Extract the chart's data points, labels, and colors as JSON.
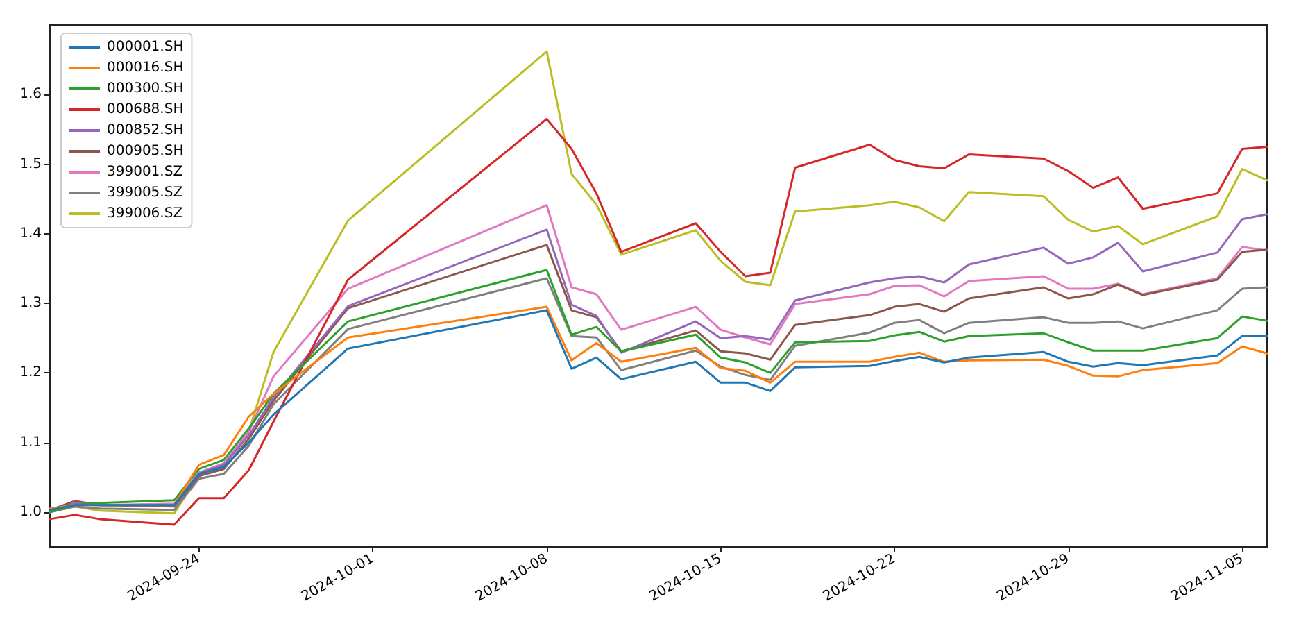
{
  "chart_data": {
    "type": "line",
    "x": [
      "2024-09-18",
      "2024-09-19",
      "2024-09-20",
      "2024-09-23",
      "2024-09-24",
      "2024-09-25",
      "2024-09-26",
      "2024-09-27",
      "2024-09-30",
      "2024-10-08",
      "2024-10-09",
      "2024-10-10",
      "2024-10-11",
      "2024-10-14",
      "2024-10-15",
      "2024-10-16",
      "2024-10-17",
      "2024-10-18",
      "2024-10-21",
      "2024-10-22",
      "2024-10-23",
      "2024-10-24",
      "2024-10-25",
      "2024-10-28",
      "2024-10-29",
      "2024-10-30",
      "2024-10-31",
      "2024-11-01",
      "2024-11-04",
      "2024-11-05",
      "2024-11-06"
    ],
    "series": [
      {
        "name": "000001.SH",
        "color": "#1f77b4",
        "values": [
          1.003,
          1.01,
          1.01,
          1.01,
          1.055,
          1.065,
          1.1,
          1.14,
          1.235,
          1.29,
          1.206,
          1.222,
          1.191,
          1.216,
          1.186,
          1.186,
          1.174,
          1.208,
          1.21,
          1.217,
          1.223,
          1.215,
          1.222,
          1.23,
          1.216,
          1.209,
          1.214,
          1.211,
          1.225,
          1.253,
          1.253
        ]
      },
      {
        "name": "000016.SH",
        "color": "#ff7f0e",
        "values": [
          1.005,
          1.01,
          1.01,
          1.01,
          1.068,
          1.082,
          1.137,
          1.17,
          1.251,
          1.295,
          1.218,
          1.243,
          1.216,
          1.236,
          1.207,
          1.203,
          1.186,
          1.216,
          1.216,
          1.223,
          1.229,
          1.216,
          1.218,
          1.219,
          1.21,
          1.196,
          1.195,
          1.204,
          1.214,
          1.238,
          1.228
        ]
      },
      {
        "name": "000300.SH",
        "color": "#2ca02c",
        "values": [
          1.0,
          1.01,
          1.013,
          1.017,
          1.062,
          1.075,
          1.12,
          1.17,
          1.274,
          1.348,
          1.255,
          1.266,
          1.231,
          1.255,
          1.222,
          1.215,
          1.2,
          1.244,
          1.246,
          1.254,
          1.259,
          1.245,
          1.253,
          1.257,
          1.244,
          1.232,
          1.232,
          1.232,
          1.25,
          1.281,
          1.275
        ]
      },
      {
        "name": "000688.SH",
        "color": "#d62728",
        "values": [
          0.99,
          0.996,
          0.99,
          0.982,
          1.02,
          1.02,
          1.06,
          1.13,
          1.334,
          1.565,
          1.522,
          1.458,
          1.374,
          1.415,
          1.374,
          1.339,
          1.344,
          1.495,
          1.528,
          1.506,
          1.497,
          1.494,
          1.514,
          1.508,
          1.49,
          1.466,
          1.481,
          1.436,
          1.458,
          1.522,
          1.525
        ]
      },
      {
        "name": "000852.SH",
        "color": "#9467bd",
        "values": [
          1.0,
          1.013,
          1.01,
          1.01,
          1.055,
          1.068,
          1.11,
          1.165,
          1.296,
          1.406,
          1.298,
          1.282,
          1.229,
          1.274,
          1.25,
          1.253,
          1.248,
          1.304,
          1.33,
          1.336,
          1.339,
          1.33,
          1.356,
          1.38,
          1.357,
          1.366,
          1.387,
          1.346,
          1.373,
          1.421,
          1.428
        ]
      },
      {
        "name": "000905.SH",
        "color": "#8c564b",
        "values": [
          1.003,
          1.016,
          1.01,
          1.008,
          1.052,
          1.062,
          1.105,
          1.16,
          1.293,
          1.384,
          1.29,
          1.28,
          1.231,
          1.261,
          1.231,
          1.228,
          1.219,
          1.269,
          1.283,
          1.295,
          1.299,
          1.288,
          1.307,
          1.323,
          1.307,
          1.313,
          1.327,
          1.312,
          1.334,
          1.374,
          1.377
        ]
      },
      {
        "name": "399001.SZ",
        "color": "#e377c2",
        "values": [
          1.0,
          1.012,
          1.01,
          1.012,
          1.057,
          1.07,
          1.115,
          1.195,
          1.321,
          1.441,
          1.323,
          1.313,
          1.262,
          1.295,
          1.262,
          1.251,
          1.241,
          1.299,
          1.313,
          1.325,
          1.326,
          1.31,
          1.332,
          1.339,
          1.321,
          1.321,
          1.328,
          1.313,
          1.336,
          1.381,
          1.376
        ]
      },
      {
        "name": "399005.SZ",
        "color": "#7f7f7f",
        "values": [
          1.0,
          1.008,
          1.005,
          1.003,
          1.048,
          1.055,
          1.095,
          1.155,
          1.263,
          1.336,
          1.253,
          1.251,
          1.204,
          1.232,
          1.209,
          1.197,
          1.19,
          1.239,
          1.258,
          1.272,
          1.276,
          1.257,
          1.272,
          1.28,
          1.272,
          1.272,
          1.274,
          1.264,
          1.29,
          1.321,
          1.323
        ]
      },
      {
        "name": "399006.SZ",
        "color": "#bcbd22",
        "values": [
          1.0,
          1.008,
          1.002,
          0.998,
          1.055,
          1.065,
          1.115,
          1.23,
          1.419,
          1.662,
          1.486,
          1.442,
          1.37,
          1.405,
          1.361,
          1.331,
          1.326,
          1.432,
          1.441,
          1.446,
          1.438,
          1.418,
          1.46,
          1.454,
          1.42,
          1.403,
          1.411,
          1.385,
          1.425,
          1.493,
          1.477
        ]
      }
    ],
    "xlim": [
      "2024-09-18",
      "2024-11-06"
    ],
    "xticks": [
      {
        "value": "2024-09-24",
        "label": "2024-09-24"
      },
      {
        "value": "2024-10-01",
        "label": "2024-10-01"
      },
      {
        "value": "2024-10-08",
        "label": "2024-10-08"
      },
      {
        "value": "2024-10-15",
        "label": "2024-10-15"
      },
      {
        "value": "2024-10-22",
        "label": "2024-10-22"
      },
      {
        "value": "2024-10-29",
        "label": "2024-10-29"
      },
      {
        "value": "2024-11-05",
        "label": "2024-11-05"
      }
    ],
    "ylim": [
      0.95,
      1.7
    ],
    "yticks": [
      {
        "value": 1,
        "label": "1.0"
      },
      {
        "value": 1.1,
        "label": "1.1"
      },
      {
        "value": 1.2,
        "label": "1.2"
      },
      {
        "value": 1.3,
        "label": "1.3"
      },
      {
        "value": 1.4,
        "label": "1.4"
      },
      {
        "value": 1.5,
        "label": "1.5"
      },
      {
        "value": 1.6,
        "label": "1.6"
      }
    ],
    "grid": false,
    "legend": "top left",
    "marker": "none",
    "line_style": "solid"
  }
}
